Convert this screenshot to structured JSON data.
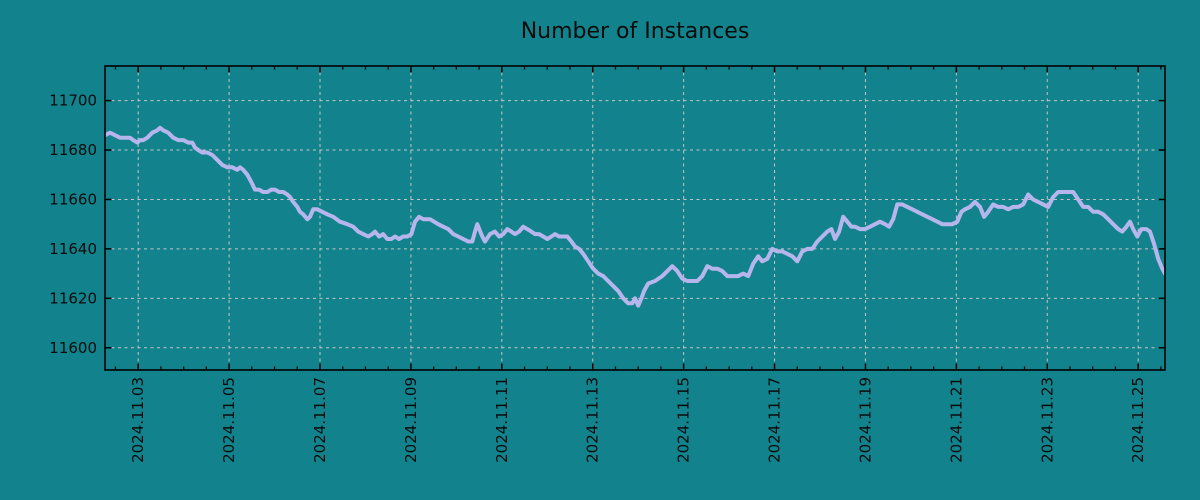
{
  "colors": {
    "background": "#12838C",
    "line": "#b6b6ec",
    "grid": "#c5c5c5",
    "axis": "#000000",
    "text": "#0b0b0b"
  },
  "chart_data": {
    "type": "line",
    "title": "Number of Instances",
    "xlabel": "",
    "ylabel": "",
    "legend": false,
    "grid": true,
    "grid_style": "dashed",
    "x_axis": {
      "unit": "date",
      "range_days": [
        2.27,
        25.59
      ],
      "major_ticks_days": [
        3,
        5,
        7,
        9,
        11,
        13,
        15,
        17,
        19,
        21,
        23,
        25
      ],
      "major_tick_labels": [
        "2024.11.03",
        "2024.11.05",
        "2024.11.07",
        "2024.11.09",
        "2024.11.11",
        "2024.11.13",
        "2024.11.15",
        "2024.11.17",
        "2024.11.19",
        "2024.11.21",
        "2024.11.23",
        "2024.11.25"
      ],
      "minor_tick_interval_days": 0.5,
      "label_rotation_deg": 90
    },
    "y_axis": {
      "range": [
        11591,
        11714
      ],
      "major_ticks": [
        11600,
        11620,
        11640,
        11660,
        11680,
        11700
      ],
      "major_tick_labels": [
        "11600",
        "11620",
        "11640",
        "11660",
        "11680",
        "11700"
      ]
    },
    "series": [
      {
        "name": "instances",
        "points": [
          [
            2.27,
            11686
          ],
          [
            2.38,
            11687
          ],
          [
            2.49,
            11686
          ],
          [
            2.6,
            11685
          ],
          [
            2.71,
            11685
          ],
          [
            2.82,
            11685
          ],
          [
            2.89,
            11684
          ],
          [
            2.98,
            11683
          ],
          [
            3.04,
            11684
          ],
          [
            3.11,
            11684
          ],
          [
            3.2,
            11685
          ],
          [
            3.31,
            11687
          ],
          [
            3.42,
            11688
          ],
          [
            3.48,
            11689
          ],
          [
            3.55,
            11688
          ],
          [
            3.66,
            11687
          ],
          [
            3.77,
            11685
          ],
          [
            3.88,
            11684
          ],
          [
            3.99,
            11684
          ],
          [
            4.1,
            11683
          ],
          [
            4.19,
            11683
          ],
          [
            4.25,
            11681
          ],
          [
            4.32,
            11680
          ],
          [
            4.41,
            11679
          ],
          [
            4.52,
            11679
          ],
          [
            4.63,
            11678
          ],
          [
            4.74,
            11676
          ],
          [
            4.85,
            11674
          ],
          [
            4.96,
            11673
          ],
          [
            5.07,
            11673
          ],
          [
            5.18,
            11672
          ],
          [
            5.24,
            11673
          ],
          [
            5.31,
            11672
          ],
          [
            5.4,
            11670
          ],
          [
            5.49,
            11667
          ],
          [
            5.57,
            11664
          ],
          [
            5.66,
            11664
          ],
          [
            5.75,
            11663
          ],
          [
            5.84,
            11663
          ],
          [
            5.93,
            11664
          ],
          [
            6.01,
            11664
          ],
          [
            6.1,
            11663
          ],
          [
            6.19,
            11663
          ],
          [
            6.28,
            11662
          ],
          [
            6.34,
            11661
          ],
          [
            6.41,
            11659
          ],
          [
            6.5,
            11657
          ],
          [
            6.56,
            11655
          ],
          [
            6.63,
            11654
          ],
          [
            6.72,
            11652
          ],
          [
            6.78,
            11653
          ],
          [
            6.85,
            11656
          ],
          [
            6.94,
            11656
          ],
          [
            7.05,
            11655
          ],
          [
            7.16,
            11654
          ],
          [
            7.29,
            11653
          ],
          [
            7.44,
            11651
          ],
          [
            7.6,
            11650
          ],
          [
            7.73,
            11649
          ],
          [
            7.84,
            11647
          ],
          [
            7.95,
            11646
          ],
          [
            8.06,
            11645
          ],
          [
            8.15,
            11646
          ],
          [
            8.21,
            11647
          ],
          [
            8.3,
            11645
          ],
          [
            8.39,
            11646
          ],
          [
            8.48,
            11644
          ],
          [
            8.57,
            11644
          ],
          [
            8.65,
            11645
          ],
          [
            8.74,
            11644
          ],
          [
            8.83,
            11645
          ],
          [
            8.92,
            11645
          ],
          [
            9.01,
            11646
          ],
          [
            9.09,
            11651
          ],
          [
            9.18,
            11653
          ],
          [
            9.27,
            11652
          ],
          [
            9.36,
            11652
          ],
          [
            9.42,
            11652
          ],
          [
            9.51,
            11651
          ],
          [
            9.6,
            11650
          ],
          [
            9.71,
            11649
          ],
          [
            9.82,
            11648
          ],
          [
            9.93,
            11646
          ],
          [
            10.04,
            11645
          ],
          [
            10.15,
            11644
          ],
          [
            10.26,
            11643
          ],
          [
            10.35,
            11643
          ],
          [
            10.41,
            11647
          ],
          [
            10.46,
            11650
          ],
          [
            10.57,
            11645
          ],
          [
            10.63,
            11643
          ],
          [
            10.74,
            11646
          ],
          [
            10.85,
            11647
          ],
          [
            10.94,
            11645
          ],
          [
            11.03,
            11646
          ],
          [
            11.12,
            11648
          ],
          [
            11.21,
            11647
          ],
          [
            11.29,
            11646
          ],
          [
            11.38,
            11647
          ],
          [
            11.47,
            11649
          ],
          [
            11.56,
            11648
          ],
          [
            11.65,
            11647
          ],
          [
            11.73,
            11646
          ],
          [
            11.82,
            11646
          ],
          [
            11.91,
            11645
          ],
          [
            12.0,
            11644
          ],
          [
            12.09,
            11645
          ],
          [
            12.17,
            11646
          ],
          [
            12.26,
            11645
          ],
          [
            12.35,
            11645
          ],
          [
            12.44,
            11645
          ],
          [
            12.53,
            11643
          ],
          [
            12.61,
            11641
          ],
          [
            12.7,
            11640
          ],
          [
            12.79,
            11638
          ],
          [
            12.9,
            11635
          ],
          [
            13.01,
            11632
          ],
          [
            13.12,
            11630
          ],
          [
            13.23,
            11629
          ],
          [
            13.34,
            11627
          ],
          [
            13.45,
            11625
          ],
          [
            13.56,
            11623
          ],
          [
            13.67,
            11620
          ],
          [
            13.78,
            11618
          ],
          [
            13.87,
            11618
          ],
          [
            13.93,
            11620
          ],
          [
            14.0,
            11617
          ],
          [
            14.07,
            11620
          ],
          [
            14.13,
            11623
          ],
          [
            14.22,
            11626
          ],
          [
            14.37,
            11627
          ],
          [
            14.53,
            11629
          ],
          [
            14.64,
            11631
          ],
          [
            14.75,
            11633
          ],
          [
            14.86,
            11631
          ],
          [
            14.97,
            11628
          ],
          [
            15.08,
            11627
          ],
          [
            15.19,
            11627
          ],
          [
            15.3,
            11627
          ],
          [
            15.41,
            11629
          ],
          [
            15.52,
            11633
          ],
          [
            15.63,
            11632
          ],
          [
            15.74,
            11632
          ],
          [
            15.85,
            11631
          ],
          [
            15.96,
            11629
          ],
          [
            16.09,
            11629
          ],
          [
            16.2,
            11629
          ],
          [
            16.31,
            11630
          ],
          [
            16.42,
            11629
          ],
          [
            16.53,
            11634
          ],
          [
            16.64,
            11637
          ],
          [
            16.73,
            11635
          ],
          [
            16.84,
            11636
          ],
          [
            16.95,
            11640
          ],
          [
            17.06,
            11639
          ],
          [
            17.17,
            11639
          ],
          [
            17.28,
            11638
          ],
          [
            17.39,
            11637
          ],
          [
            17.5,
            11635
          ],
          [
            17.61,
            11639
          ],
          [
            17.72,
            11640
          ],
          [
            17.83,
            11640
          ],
          [
            17.94,
            11643
          ],
          [
            18.05,
            11645
          ],
          [
            18.16,
            11647
          ],
          [
            18.25,
            11648
          ],
          [
            18.33,
            11644
          ],
          [
            18.42,
            11647
          ],
          [
            18.51,
            11653
          ],
          [
            18.6,
            11651
          ],
          [
            18.69,
            11649
          ],
          [
            18.77,
            11649
          ],
          [
            18.88,
            11648
          ],
          [
            18.99,
            11648
          ],
          [
            19.1,
            11649
          ],
          [
            19.21,
            11650
          ],
          [
            19.32,
            11651
          ],
          [
            19.43,
            11650
          ],
          [
            19.52,
            11649
          ],
          [
            19.61,
            11652
          ],
          [
            19.7,
            11658
          ],
          [
            19.81,
            11658
          ],
          [
            19.92,
            11657
          ],
          [
            20.03,
            11656
          ],
          [
            20.14,
            11655
          ],
          [
            20.25,
            11654
          ],
          [
            20.36,
            11653
          ],
          [
            20.47,
            11652
          ],
          [
            20.58,
            11651
          ],
          [
            20.69,
            11650
          ],
          [
            20.8,
            11650
          ],
          [
            20.91,
            11650
          ],
          [
            21.02,
            11651
          ],
          [
            21.11,
            11655
          ],
          [
            21.19,
            11656
          ],
          [
            21.3,
            11657
          ],
          [
            21.41,
            11659
          ],
          [
            21.52,
            11657
          ],
          [
            21.61,
            11653
          ],
          [
            21.7,
            11655
          ],
          [
            21.81,
            11658
          ],
          [
            21.92,
            11657
          ],
          [
            22.03,
            11657
          ],
          [
            22.14,
            11656
          ],
          [
            22.25,
            11657
          ],
          [
            22.36,
            11657
          ],
          [
            22.47,
            11658
          ],
          [
            22.58,
            11662
          ],
          [
            22.69,
            11660
          ],
          [
            22.8,
            11659
          ],
          [
            22.91,
            11658
          ],
          [
            23.02,
            11657
          ],
          [
            23.13,
            11661
          ],
          [
            23.24,
            11663
          ],
          [
            23.35,
            11663
          ],
          [
            23.46,
            11663
          ],
          [
            23.57,
            11663
          ],
          [
            23.68,
            11660
          ],
          [
            23.79,
            11657
          ],
          [
            23.9,
            11657
          ],
          [
            24.01,
            11655
          ],
          [
            24.12,
            11655
          ],
          [
            24.23,
            11654
          ],
          [
            24.34,
            11652
          ],
          [
            24.45,
            11650
          ],
          [
            24.56,
            11648
          ],
          [
            24.65,
            11647
          ],
          [
            24.74,
            11649
          ],
          [
            24.82,
            11651
          ],
          [
            24.89,
            11648
          ],
          [
            24.98,
            11645
          ],
          [
            25.07,
            11648
          ],
          [
            25.18,
            11648
          ],
          [
            25.26,
            11647
          ],
          [
            25.35,
            11642
          ],
          [
            25.44,
            11636
          ],
          [
            25.53,
            11632
          ],
          [
            25.59,
            11630
          ]
        ]
      }
    ]
  }
}
